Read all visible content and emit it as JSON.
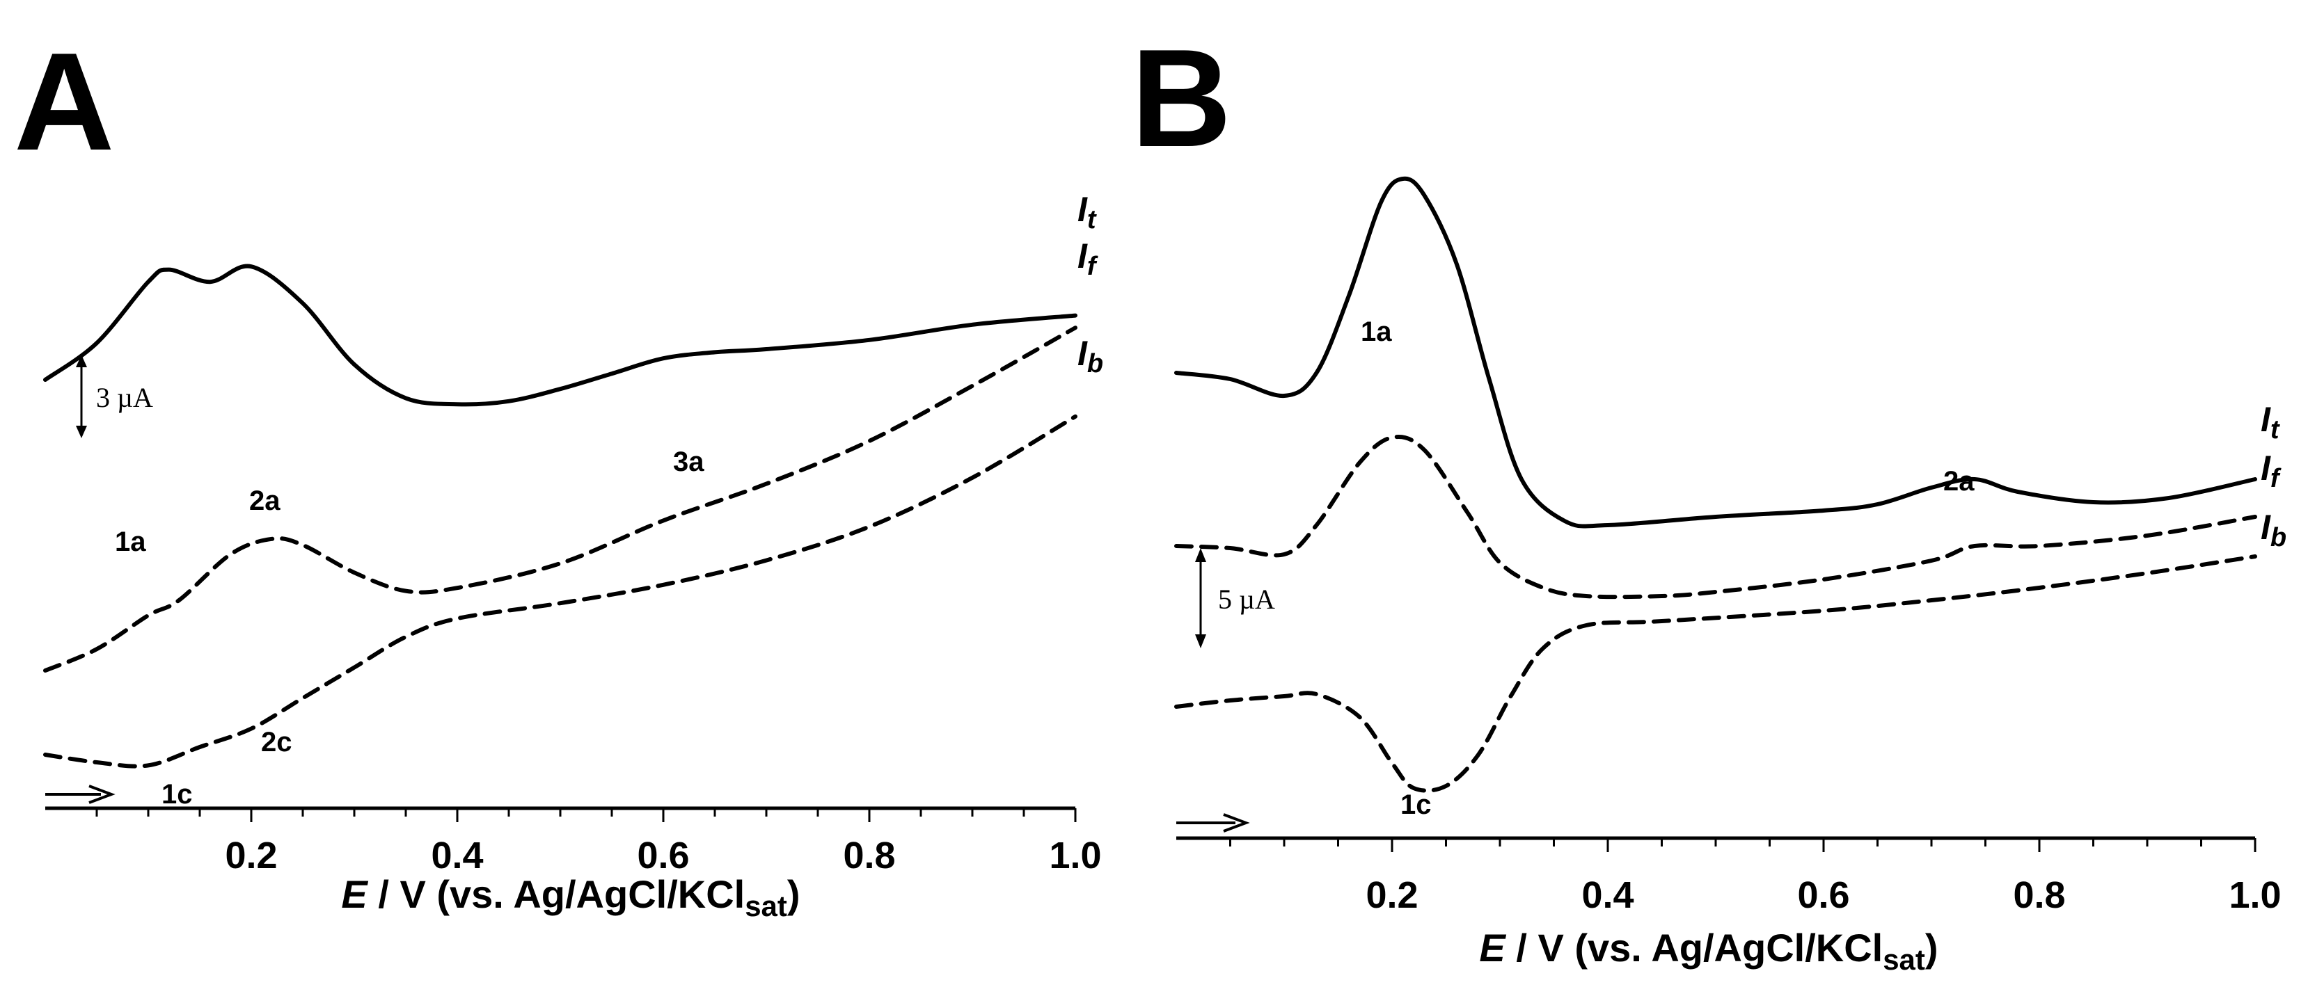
{
  "chart_data": [
    {
      "type": "line",
      "panel_label": "A",
      "xlabel": {
        "italic": "E",
        "rest": " / V (vs. Ag/AgCl/KCl",
        "sub": "sat",
        "close": ")"
      },
      "xlim": [
        0.0,
        1.0
      ],
      "x_ticks": [
        "0.2",
        "0.4",
        "0.6",
        "0.8",
        "1.0"
      ],
      "y_units": "µA (offset traces)",
      "scale_bar": {
        "label": "3 µA",
        "value": 3
      },
      "series": [
        {
          "name": "It",
          "style": "solid",
          "x": [
            0.0,
            0.05,
            0.1,
            0.12,
            0.16,
            0.2,
            0.25,
            0.3,
            0.35,
            0.4,
            0.45,
            0.5,
            0.55,
            0.6,
            0.65,
            0.7,
            0.8,
            0.9,
            1.0
          ],
          "y": [
            14.0,
            15.2,
            17.2,
            17.6,
            17.2,
            17.7,
            16.5,
            14.5,
            13.4,
            13.2,
            13.3,
            13.7,
            14.2,
            14.7,
            14.9,
            15.0,
            15.3,
            15.8,
            16.1
          ]
        },
        {
          "name": "If",
          "style": "dashed",
          "x": [
            0.0,
            0.05,
            0.1,
            0.13,
            0.18,
            0.22,
            0.25,
            0.3,
            0.35,
            0.4,
            0.5,
            0.6,
            0.7,
            0.8,
            0.9,
            1.0
          ],
          "y": [
            4.5,
            5.2,
            6.3,
            6.8,
            8.3,
            8.8,
            8.6,
            7.7,
            7.1,
            7.2,
            8.0,
            9.4,
            10.6,
            12.0,
            13.8,
            15.7
          ]
        },
        {
          "name": "Ib",
          "style": "dashed",
          "x": [
            0.0,
            0.05,
            0.1,
            0.15,
            0.2,
            0.25,
            0.3,
            0.35,
            0.4,
            0.5,
            0.6,
            0.7,
            0.8,
            0.9,
            1.0
          ],
          "y": [
            1.75,
            1.5,
            1.4,
            2.0,
            2.6,
            3.6,
            4.6,
            5.6,
            6.2,
            6.7,
            7.3,
            8.1,
            9.2,
            10.8,
            12.8
          ]
        }
      ],
      "annotations": [
        "1a",
        "2a",
        "3a",
        "1c",
        "2c"
      ],
      "series_labels": [
        {
          "base": "I",
          "sub": "t"
        },
        {
          "base": "I",
          "sub": "f"
        },
        {
          "base": "I",
          "sub": "b"
        }
      ]
    },
    {
      "type": "line",
      "panel_label": "B",
      "xlabel": {
        "italic": "E",
        "rest": " / V (vs. Ag/AgCl/KCl",
        "sub": "sat",
        "close": ")"
      },
      "xlim": [
        0.0,
        1.0
      ],
      "x_ticks": [
        "0.2",
        "0.4",
        "0.6",
        "0.8",
        "1.0"
      ],
      "y_units": "µA (offset traces)",
      "scale_bar": {
        "label": "5 µA",
        "value": 5
      },
      "series": [
        {
          "name": "It",
          "style": "solid",
          "x": [
            0.0,
            0.05,
            0.1,
            0.13,
            0.16,
            0.19,
            0.21,
            0.23,
            0.26,
            0.29,
            0.32,
            0.36,
            0.4,
            0.5,
            0.6,
            0.65,
            0.7,
            0.74,
            0.78,
            0.85,
            0.92,
            1.0
          ],
          "y": [
            22.3,
            22.0,
            21.2,
            22.3,
            26.0,
            30.5,
            31.6,
            30.8,
            27.5,
            22.0,
            17.2,
            15.2,
            15.0,
            15.4,
            15.7,
            16.0,
            16.8,
            17.2,
            16.6,
            16.1,
            16.3,
            17.2
          ]
        },
        {
          "name": "If",
          "style": "dashed",
          "x": [
            0.0,
            0.05,
            0.1,
            0.13,
            0.17,
            0.2,
            0.23,
            0.27,
            0.3,
            0.34,
            0.38,
            0.45,
            0.5,
            0.6,
            0.7,
            0.74,
            0.8,
            0.9,
            1.0
          ],
          "y": [
            14.0,
            13.9,
            13.6,
            15.0,
            18.0,
            19.2,
            18.6,
            15.6,
            13.2,
            12.0,
            11.6,
            11.6,
            11.8,
            12.4,
            13.3,
            14.0,
            14.0,
            14.5,
            15.4
          ]
        },
        {
          "name": "Ib",
          "style": "dashed",
          "x": [
            0.0,
            0.05,
            0.1,
            0.13,
            0.17,
            0.2,
            0.22,
            0.25,
            0.28,
            0.31,
            0.34,
            0.38,
            0.45,
            0.6,
            0.7,
            0.8,
            0.9,
            1.0
          ],
          "y": [
            6.3,
            6.6,
            6.8,
            6.9,
            5.8,
            3.6,
            2.4,
            2.5,
            4.0,
            6.8,
            9.1,
            10.2,
            10.4,
            10.9,
            11.4,
            12.0,
            12.7,
            13.5
          ]
        }
      ],
      "annotations": [
        "1a",
        "2a",
        "1c"
      ],
      "series_labels": [
        {
          "base": "I",
          "sub": "t"
        },
        {
          "base": "I",
          "sub": "f"
        },
        {
          "base": "I",
          "sub": "b"
        }
      ]
    }
  ]
}
